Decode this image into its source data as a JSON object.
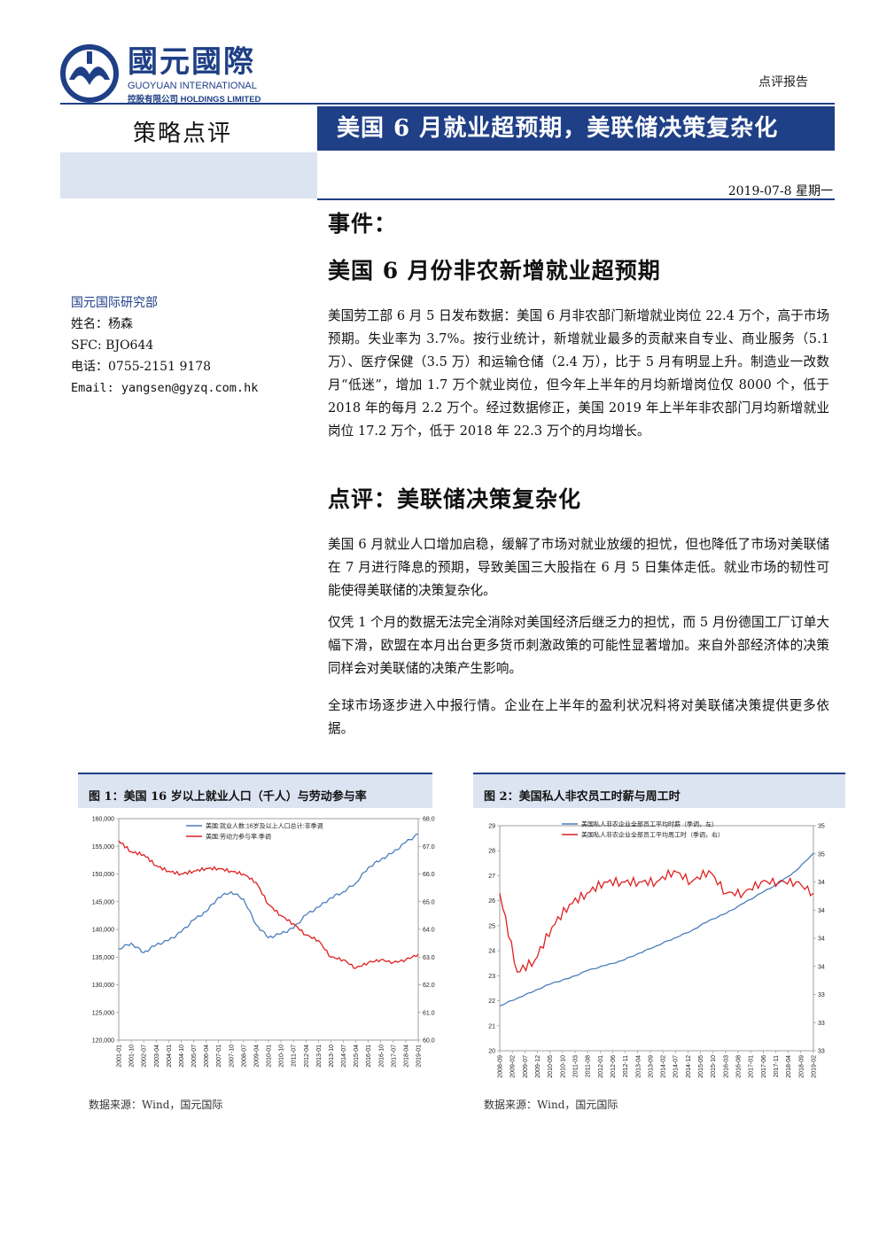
{
  "header": {
    "logo_cn": "國元國際",
    "logo_en1": "GUOYUAN INTERNATIONAL",
    "logo_en2": "控股有限公司 HOLDINGS LIMITED",
    "report_type": "点评报告",
    "section_label": "策略点评",
    "main_title": "美国 6 月就业超预期，美联储决策复杂化",
    "date": "2019-07-8 星期一",
    "brand_color": "#1f3f86"
  },
  "author": {
    "dept": "国元国际研究部",
    "name": "姓名：杨森",
    "sfc": "SFC: BJO644",
    "phone": "电话：0755-2151 9178",
    "email": "Email: yangsen@gyzq.com.hk"
  },
  "body": {
    "event_heading": "事件：",
    "event_sub": "美国 6 月份非农新增就业超预期",
    "p1": "美国劳工部 6 月 5 日发布数据：美国 6 月非农部门新增就业岗位 22.4 万个，高于市场预期。失业率为 3.7%。按行业统计，新增就业最多的贡献来自专业、商业服务（5.1 万）、医疗保健（3.5 万）和运输仓储（2.4 万），比于 5 月有明显上升。制造业一改数月“低迷”，增加 1.7 万个就业岗位，但今年上半年的月均新增岗位仅 8000 个，低于 2018 年的每月 2.2 万个。经过数据修正，美国 2019 年上半年非农部门月均新增就业岗位 17.2 万个，低于 2018 年 22.3 万个的月均增长。",
    "comment_heading": "点评：美联储决策复杂化",
    "p2": "美国 6 月就业人口增加启稳，缓解了市场对就业放缓的担忧，但也降低了市场对美联储在 7 月进行降息的预期，导致美国三大股指在 6 月 5 日集体走低。就业市场的韧性可能使得美联储的决策复杂化。",
    "p3": "仅凭 1 个月的数据无法完全消除对美国经济后继乏力的担忧，而 5 月份德国工厂订单大幅下滑，欧盟在本月出台更多货币刺激政策的可能性显著增加。来自外部经济体的决策同样会对美联储的决策产生影响。",
    "p4": "全球市场逐步进入中报行情。企业在上半年的盈利状况料将对美联储决策提供更多依据。"
  },
  "figures": {
    "fig1_title": "图 1：美国 16 岁以上就业人口（千人）与劳动参与率",
    "fig2_title": "图 2：美国私人非农员工时薪与周工时",
    "source1": "数据来源：Wind，国元国际",
    "source2": "数据来源：Wind，国元国际"
  },
  "chart_data": [
    {
      "type": "line",
      "title": "图 1：美国 16 岁以上就业人口（千人）与劳动参与率",
      "x": [
        "2001-01",
        "2001-10",
        "2002-07",
        "2003-04",
        "2004-01",
        "2004-10",
        "2005-07",
        "2006-04",
        "2007-01",
        "2007-10",
        "2008-07",
        "2009-04",
        "2010-01",
        "2010-10",
        "2011-07",
        "2012-04",
        "2013-01",
        "2013-10",
        "2014-07",
        "2015-04",
        "2016-01",
        "2016-10",
        "2017-07",
        "2018-04",
        "2019-01"
      ],
      "ylim_left": [
        120000,
        160000
      ],
      "yticks_left": [
        "160,000",
        "155,000",
        "150,000",
        "145,000",
        "140,000",
        "135,000",
        "130,000",
        "125,000",
        "120,000"
      ],
      "ylim_right": [
        60.0,
        68.0
      ],
      "yticks_right": [
        "68.0",
        "67.0",
        "66.0",
        "65.0",
        "64.0",
        "63.0",
        "62.0",
        "61.0",
        "60.0"
      ],
      "legend_position": "top-center",
      "series": [
        {
          "name": "美国:就业人数:16岁及以上人口总计:非季调",
          "axis": "left",
          "color": "#4a7ebb",
          "values": [
            136500,
            137500,
            135800,
            137200,
            138000,
            139500,
            141700,
            143200,
            145800,
            146800,
            145500,
            140900,
            138500,
            139200,
            140200,
            142600,
            144000,
            145700,
            146800,
            148400,
            151200,
            152600,
            153900,
            155700,
            157200
          ]
        },
        {
          "name": "美国:劳动力参与率:季调",
          "axis": "right",
          "color": "#e02020",
          "values": [
            67.2,
            66.8,
            66.7,
            66.3,
            66.1,
            66.0,
            66.1,
            66.2,
            66.2,
            66.1,
            66.0,
            65.7,
            64.9,
            64.5,
            64.2,
            63.8,
            63.6,
            63.0,
            62.9,
            62.6,
            62.8,
            62.9,
            62.8,
            62.9,
            63.1
          ]
        }
      ]
    },
    {
      "type": "line",
      "title": "图 2：美国私人非农员工时薪与周工时",
      "x": [
        "2008-09",
        "2009-04",
        "2009-11",
        "2010-06",
        "2011-01",
        "2011-08",
        "2012-03",
        "2012-10",
        "2013-05",
        "2013-12",
        "2014-07",
        "2015-02",
        "2015-09",
        "2016-04",
        "2016-11",
        "2017-06",
        "2018-01",
        "2018-08",
        "2019-03"
      ],
      "xticks": [
        "2008-09",
        "2009-02",
        "2009-07",
        "2009-12",
        "2010-05",
        "2010-10",
        "2011-03",
        "2011-08",
        "2012-01",
        "2012-06",
        "2012-11",
        "2013-04",
        "2013-09",
        "2014-02",
        "2014-07",
        "2014-12",
        "2015-05",
        "2015-10",
        "2016-03",
        "2016-08",
        "2017-01",
        "2017-06",
        "2017-11",
        "2018-04",
        "2018-09",
        "2019-02"
      ],
      "ylim_left": [
        20,
        29
      ],
      "yticks_left": [
        "29",
        "28",
        "27",
        "26",
        "25",
        "24",
        "23",
        "22",
        "21",
        "20"
      ],
      "ylim_right": [
        33,
        35
      ],
      "yticks_right": [
        "35",
        "35",
        "34",
        "34",
        "34",
        "34",
        "33",
        "33",
        "33"
      ],
      "legend_position": "top-left",
      "series": [
        {
          "name": "美国私人非农企业全部员工平均时薪（季调，左）",
          "axis": "left",
          "color": "#4a7ebb",
          "values": [
            21.8,
            22.1,
            22.4,
            22.7,
            22.9,
            23.2,
            23.4,
            23.6,
            23.9,
            24.2,
            24.5,
            24.8,
            25.2,
            25.5,
            25.9,
            26.3,
            26.7,
            27.2,
            27.9
          ]
        },
        {
          "name": "美国私人非农企业全部员工平均周工时（季调，右）",
          "axis": "right",
          "color": "#e02020",
          "values": [
            34.4,
            33.7,
            33.8,
            34.1,
            34.3,
            34.4,
            34.5,
            34.5,
            34.5,
            34.5,
            34.6,
            34.5,
            34.6,
            34.4,
            34.4,
            34.5,
            34.5,
            34.5,
            34.4
          ]
        }
      ]
    }
  ]
}
